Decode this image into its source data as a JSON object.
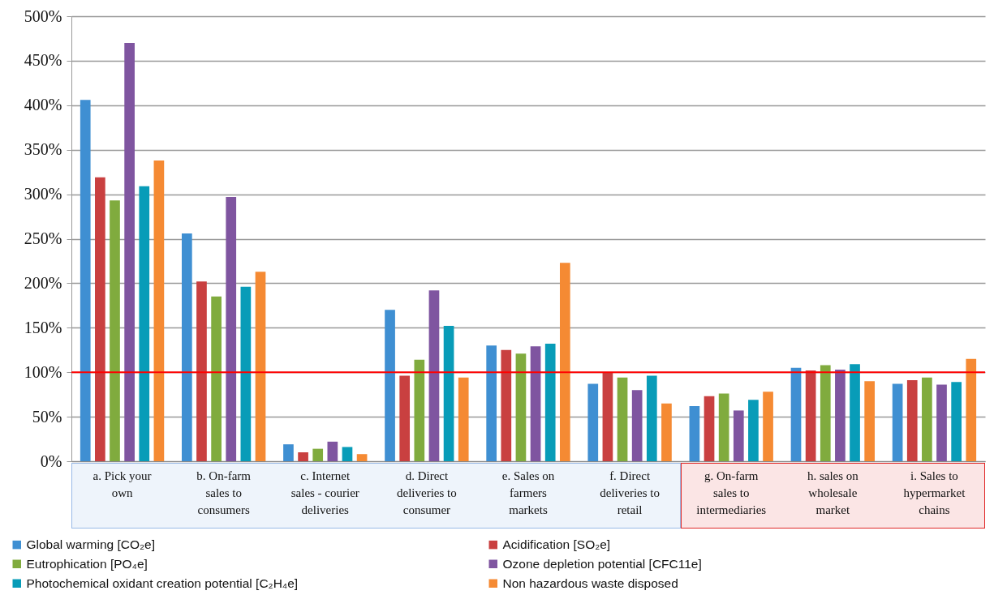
{
  "chart_data": {
    "type": "bar",
    "categories": [
      "a. Pick your own",
      "b. On-farm sales to consumers",
      "c. Internet sales - courier deliveries",
      "d. Direct deliveries to consumer",
      "e. Sales on farmers markets",
      "f. Direct deliveries to retail",
      "g. On-farm sales to intermediaries",
      "h. sales on wholesale market",
      "i. Sales to hypermarket chains"
    ],
    "series": [
      {
        "name": "Global warming [CO₂e]",
        "color": "#3f8fd2",
        "values": [
          406,
          256,
          19,
          170,
          130,
          87,
          62,
          105,
          87
        ]
      },
      {
        "name": "Acidification [SO₂e]",
        "color": "#c94040",
        "values": [
          319,
          202,
          10,
          96,
          125,
          100,
          73,
          102,
          91
        ]
      },
      {
        "name": "Eutrophication [PO₄e]",
        "color": "#80ab3e",
        "values": [
          293,
          185,
          14,
          114,
          121,
          94,
          76,
          108,
          94
        ]
      },
      {
        "name": "Ozone depletion potential [CFC11e]",
        "color": "#7f55a0",
        "values": [
          470,
          297,
          22,
          192,
          129,
          80,
          57,
          103,
          86
        ]
      },
      {
        "name": "Photochemical oxidant creation potential [C₂H₄e]",
        "color": "#089cb8",
        "values": [
          309,
          196,
          16,
          152,
          132,
          96,
          69,
          109,
          89
        ]
      },
      {
        "name": "Non hazardous waste disposed",
        "color": "#f58a33",
        "values": [
          338,
          213,
          8,
          94,
          223,
          65,
          78,
          90,
          115
        ]
      }
    ],
    "ylim": [
      0,
      500
    ],
    "yticks": [
      {
        "value": 0,
        "label": "0%"
      },
      {
        "value": 50,
        "label": "50%"
      },
      {
        "value": 100,
        "label": "100%"
      },
      {
        "value": 150,
        "label": "150%"
      },
      {
        "value": 200,
        "label": "200%"
      },
      {
        "value": 250,
        "label": "250%"
      },
      {
        "value": 300,
        "label": "300%"
      },
      {
        "value": 350,
        "label": "350%"
      },
      {
        "value": 400,
        "label": "400%"
      },
      {
        "value": 450,
        "label": "450%"
      },
      {
        "value": 500,
        "label": "500%"
      }
    ],
    "ref_lines": [
      {
        "axis": "y",
        "value": 100,
        "color": "#ff0000"
      }
    ],
    "grid": "y",
    "legend": "bottom"
  }
}
